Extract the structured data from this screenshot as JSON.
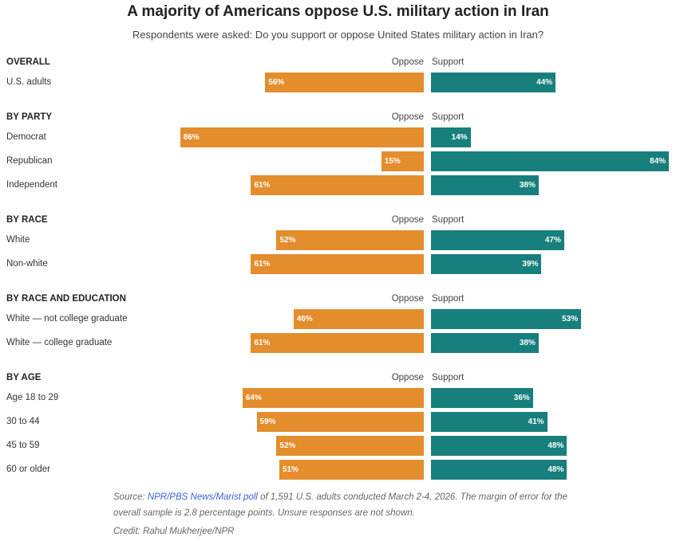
{
  "chart_data": {
    "type": "bar",
    "orientation": "horizontal-diverging",
    "title": "A majority of Americans oppose U.S. military action in Iran",
    "subtitle": "Respondents were asked: Do you support or oppose United States military action in Iran?",
    "series_labels": {
      "oppose": "Oppose",
      "support": "Support"
    },
    "colors": {
      "oppose": "#e38d2c",
      "support": "#177f7c"
    },
    "groups": [
      {
        "title": "OVERALL",
        "rows": [
          {
            "label": "U.S. adults",
            "oppose": 56,
            "support": 44
          }
        ]
      },
      {
        "title": "BY PARTY",
        "rows": [
          {
            "label": "Democrat",
            "oppose": 86,
            "support": 14
          },
          {
            "label": "Republican",
            "oppose": 15,
            "support": 84
          },
          {
            "label": "Independent",
            "oppose": 61,
            "support": 38
          }
        ]
      },
      {
        "title": "BY RACE",
        "rows": [
          {
            "label": "White",
            "oppose": 52,
            "support": 47
          },
          {
            "label": "Non-white",
            "oppose": 61,
            "support": 39
          }
        ]
      },
      {
        "title": "BY RACE AND EDUCATION",
        "rows": [
          {
            "label": "White — not college graduate",
            "oppose": 46,
            "support": 53
          },
          {
            "label": "White — college graduate",
            "oppose": 61,
            "support": 38
          }
        ]
      },
      {
        "title": "BY AGE",
        "rows": [
          {
            "label": "Age 18 to 29",
            "oppose": 64,
            "support": 36
          },
          {
            "label": "30 to 44",
            "oppose": 59,
            "support": 41
          },
          {
            "label": "45 to 59",
            "oppose": 52,
            "support": 48
          },
          {
            "label": "60 or older",
            "oppose": 51,
            "support": 48
          }
        ]
      }
    ]
  },
  "footer": {
    "source_prefix": "Source: ",
    "source_link": "NPR/PBS News/Marist poll",
    "source_rest": " of 1,591 U.S. adults conducted March 2-4, 2026. The margin of error for the",
    "source_line2": "overall sample is 2.8 percentage points. Unsure responses are not shown.",
    "credit": "Credit: Rahul Mukherjee/NPR"
  }
}
